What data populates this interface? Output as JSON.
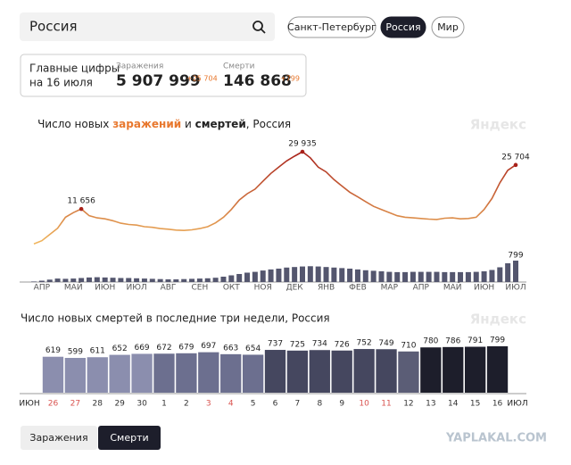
{
  "search": {
    "query": "Россия"
  },
  "tabs": [
    "Санкт-Петербург",
    "Россия",
    "Мир"
  ],
  "active_tab": 1,
  "summary": {
    "caption_lines": [
      "Главные цифры",
      "на 16 июля"
    ],
    "cases": {
      "label": "Заражения",
      "total": "5 907 999",
      "delta": "+25 704"
    },
    "deaths": {
      "label": "Смерти",
      "total": "146 868",
      "delta": "+799"
    }
  },
  "watermark": "Яндекс",
  "chart_data": [
    {
      "type": "line",
      "title_parts": [
        "Число новых ",
        "заражений",
        " и ",
        "смертей",
        ", Россия"
      ],
      "categories": [
        null,
        "АПР",
        null,
        null,
        null,
        "МАЙ",
        null,
        null,
        null,
        "ИЮН",
        null,
        null,
        null,
        "ИЮЛ",
        null,
        null,
        null,
        "АВГ",
        null,
        null,
        null,
        "СЕН",
        null,
        null,
        null,
        "ОКТ",
        null,
        null,
        null,
        "НОЯ",
        null,
        null,
        null,
        "ДЕК",
        null,
        null,
        null,
        "ЯНВ",
        null,
        null,
        null,
        "ФЕВ",
        null,
        null,
        null,
        "МАР",
        null,
        null,
        null,
        "АПР",
        null,
        null,
        null,
        "МАЙ",
        null,
        null,
        null,
        "ИЮН",
        null,
        null,
        null,
        "ИЮЛ"
      ],
      "series": [
        {
          "colors": [
            "#f2b95e",
            "#a8211a"
          ],
          "values": [
            500,
            1500,
            3500,
            5500,
            9000,
            10500,
            11656,
            9500,
            8800,
            8500,
            7900,
            7100,
            6700,
            6500,
            6000,
            5800,
            5400,
            5200,
            4900,
            4800,
            5000,
            5400,
            6000,
            7200,
            9000,
            11500,
            14500,
            16500,
            18000,
            20500,
            23000,
            25000,
            27000,
            28500,
            29935,
            28000,
            25000,
            23500,
            21000,
            19000,
            17000,
            15500,
            14000,
            12500,
            11500,
            10500,
            9500,
            9000,
            8800,
            8600,
            8400,
            8300,
            8700,
            8800,
            8500,
            8600,
            9000,
            11500,
            15000,
            20000,
            24000,
            25704
          ],
          "value_labels": [
            null,
            null,
            null,
            null,
            null,
            null,
            "11 656",
            null,
            null,
            null,
            null,
            null,
            null,
            null,
            null,
            null,
            null,
            null,
            null,
            null,
            null,
            null,
            null,
            null,
            null,
            null,
            null,
            null,
            null,
            null,
            null,
            null,
            null,
            null,
            "29 935",
            null,
            null,
            null,
            null,
            null,
            null,
            null,
            null,
            null,
            null,
            null,
            null,
            null,
            null,
            null,
            null,
            null,
            null,
            null,
            null,
            null,
            null,
            null,
            null,
            null,
            null,
            "25 704"
          ]
        },
        {
          "type": "bar",
          "axis": "y2",
          "color": "#54566e",
          "values": [
            20,
            50,
            90,
            130,
            120,
            130,
            150,
            170,
            180,
            170,
            160,
            150,
            150,
            140,
            130,
            120,
            110,
            100,
            100,
            110,
            120,
            130,
            140,
            160,
            200,
            250,
            300,
            350,
            380,
            430,
            470,
            500,
            540,
            560,
            580,
            590,
            580,
            560,
            540,
            520,
            500,
            470,
            440,
            420,
            400,
            380,
            370,
            370,
            380,
            380,
            380,
            380,
            370,
            370,
            370,
            370,
            380,
            400,
            450,
            550,
            700,
            799
          ],
          "value_labels": [
            null,
            null,
            null,
            null,
            null,
            null,
            null,
            null,
            null,
            null,
            null,
            null,
            null,
            null,
            null,
            null,
            null,
            null,
            null,
            null,
            null,
            null,
            null,
            null,
            null,
            null,
            null,
            null,
            null,
            null,
            null,
            null,
            null,
            null,
            null,
            null,
            null,
            null,
            null,
            null,
            null,
            null,
            null,
            null,
            null,
            null,
            null,
            null,
            null,
            null,
            null,
            null,
            null,
            null,
            null,
            null,
            null,
            null,
            null,
            null,
            null,
            "799"
          ]
        }
      ]
    },
    {
      "type": "bar",
      "title": "Число новых смертей в последние три недели, Россия",
      "axis_labels": [
        "ИЮН",
        "ИЮЛ"
      ],
      "categories": [
        "26",
        "27",
        "28",
        "29",
        "30",
        "1",
        "2",
        "3",
        "4",
        "5",
        "6",
        "7",
        "8",
        "9",
        "10",
        "11",
        "12",
        "13",
        "14",
        "15",
        "16"
      ],
      "values": [
        619,
        599,
        611,
        652,
        669,
        672,
        679,
        697,
        663,
        654,
        737,
        725,
        734,
        726,
        752,
        749,
        710,
        780,
        786,
        791,
        799
      ],
      "colors": [
        "#8b8eae",
        "#8b8eae",
        "#8b8eae",
        "#8b8eae",
        "#8b8eae",
        "#6c6f8f",
        "#6c6f8f",
        "#6c6f8f",
        "#6c6f8f",
        "#6c6f8f",
        "#45475f",
        "#45475f",
        "#45475f",
        "#45475f",
        "#45475f",
        "#45475f",
        "#5b5d76",
        "#1d1e2b",
        "#1d1e2b",
        "#1d1e2b",
        "#1d1e2b"
      ],
      "label_colors": [
        "#d9534f",
        "#d9534f",
        "#333333",
        "#333333",
        "#333333",
        "#333333",
        "#333333",
        "#d9534f",
        "#d9534f",
        "#333333",
        "#333333",
        "#333333",
        "#333333",
        "#333333",
        "#d9534f",
        "#d9534f",
        "#333333",
        "#333333",
        "#333333",
        "#333333",
        "#333333"
      ]
    }
  ],
  "toggle": [
    "Заражения",
    "Смерти"
  ],
  "active_toggle": 1,
  "site_watermark": "YAPLAKAL.COM"
}
